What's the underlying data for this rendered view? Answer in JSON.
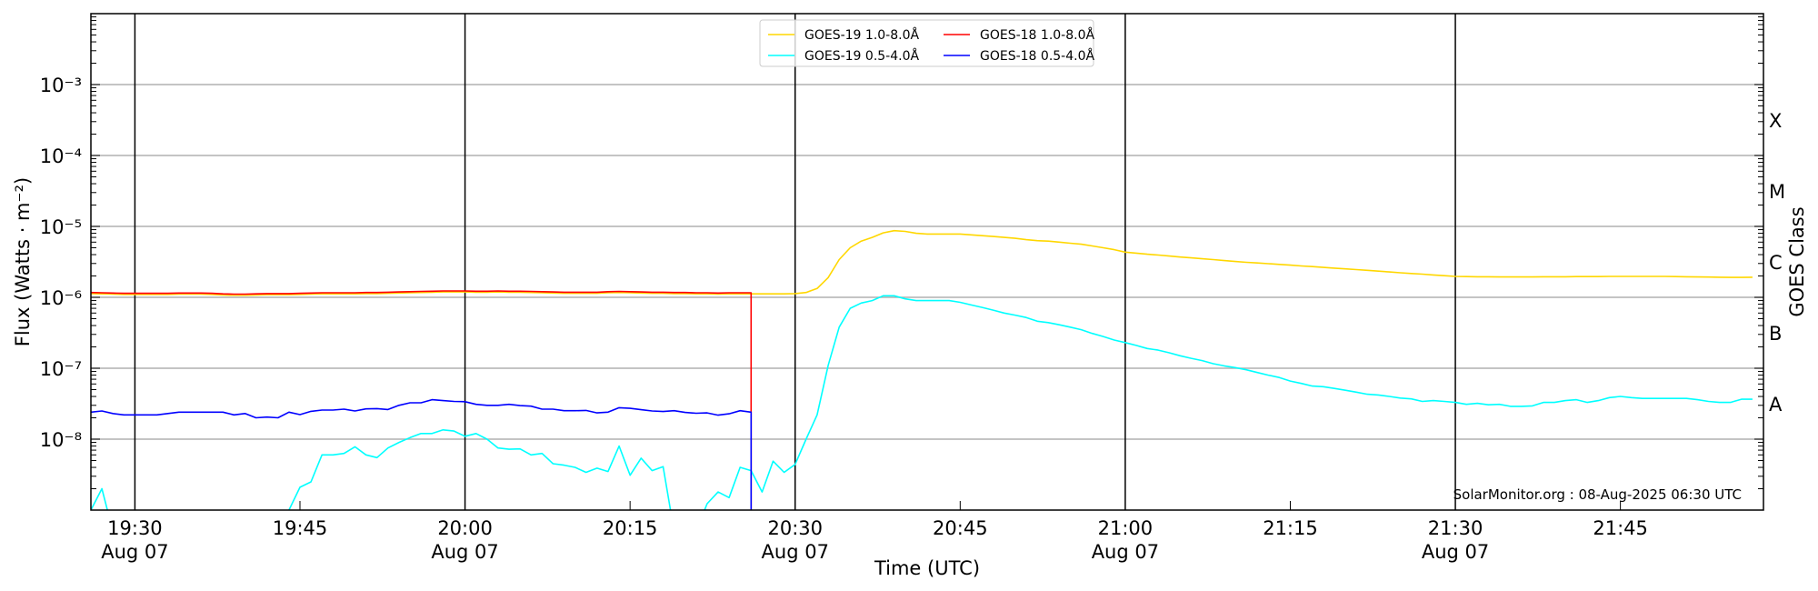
{
  "chart_data": {
    "type": "line",
    "title": "",
    "xlabel": "Time (UTC)",
    "ylabel": "Flux (Watts · m⁻²)",
    "ylabel_right": "GOES Class",
    "yscale": "log",
    "ylim": [
      1e-09,
      0.01
    ],
    "xlim": [
      "19:26",
      "21:58"
    ],
    "date": "Aug 07",
    "grid": "horizontal at decades",
    "legend_placement": "top-center",
    "yticks": [
      1e-08,
      1e-07,
      1e-06,
      1e-05,
      0.0001,
      0.001
    ],
    "ytick_labels": [
      "10⁻⁸",
      "10⁻⁷",
      "10⁻⁶",
      "10⁻⁵",
      "10⁻⁴",
      "10⁻³"
    ],
    "xticks": [
      {
        "time": "19:30",
        "label": "19:30",
        "sublabel": "Aug 07",
        "vline": true
      },
      {
        "time": "19:45",
        "label": "19:45"
      },
      {
        "time": "20:00",
        "label": "20:00",
        "sublabel": "Aug 07",
        "vline": true
      },
      {
        "time": "20:15",
        "label": "20:15"
      },
      {
        "time": "20:30",
        "label": "20:30",
        "sublabel": "Aug 07",
        "vline": true
      },
      {
        "time": "20:45",
        "label": "20:45"
      },
      {
        "time": "21:00",
        "label": "21:00",
        "sublabel": "Aug 07",
        "vline": true
      },
      {
        "time": "21:15",
        "label": "21:15"
      },
      {
        "time": "21:30",
        "label": "21:30",
        "sublabel": "Aug 07",
        "vline": true
      },
      {
        "time": "21:45",
        "label": "21:45"
      }
    ],
    "goes_classes": [
      {
        "label": "X",
        "log_flux": -3.5
      },
      {
        "label": "M",
        "log_flux": -4.5
      },
      {
        "label": "C",
        "log_flux": -5.5
      },
      {
        "label": "B",
        "log_flux": -6.5
      },
      {
        "label": "A",
        "log_flux": -7.5
      }
    ],
    "series": [
      {
        "name": "GOES-19 1.0-8.0Å",
        "color": "#FFD700",
        "start": "19:26",
        "step_min": 1,
        "values": [
          1.13e-06,
          1.12e-06,
          1.11e-06,
          1.1e-06,
          1.1e-06,
          1.1e-06,
          1.1e-06,
          1.1e-06,
          1.11e-06,
          1.11e-06,
          1.11e-06,
          1.1e-06,
          1.08e-06,
          1.07e-06,
          1.07e-06,
          1.08e-06,
          1.09e-06,
          1.09e-06,
          1.09e-06,
          1.1e-06,
          1.11e-06,
          1.12e-06,
          1.12e-06,
          1.12e-06,
          1.12e-06,
          1.13e-06,
          1.13e-06,
          1.14e-06,
          1.15e-06,
          1.16e-06,
          1.17e-06,
          1.18e-06,
          1.19e-06,
          1.19e-06,
          1.19e-06,
          1.18e-06,
          1.18e-06,
          1.19e-06,
          1.18e-06,
          1.18e-06,
          1.17e-06,
          1.16e-06,
          1.15e-06,
          1.14e-06,
          1.14e-06,
          1.14e-06,
          1.14e-06,
          1.16e-06,
          1.17e-06,
          1.16e-06,
          1.15e-06,
          1.14e-06,
          1.14e-06,
          1.13e-06,
          1.13e-06,
          1.12e-06,
          1.12e-06,
          1.11e-06,
          1.12e-06,
          1.12e-06,
          1.12e-06,
          1.12e-06,
          1.12e-06,
          1.12e-06,
          1.13e-06,
          1.17e-06,
          1.33e-06,
          1.9e-06,
          3.4e-06,
          5e-06,
          6.2e-06,
          7e-06,
          8.1e-06,
          8.7e-06,
          8.5e-06,
          8e-06,
          7.8e-06,
          7.8e-06,
          7.8e-06,
          7.8e-06,
          7.6e-06,
          7.4e-06,
          7.2e-06,
          7e-06,
          6.8e-06,
          6.5e-06,
          6.3e-06,
          6.2e-06,
          6e-06,
          5.8e-06,
          5.6e-06,
          5.3e-06,
          5e-06,
          4.7e-06,
          4.34e-06,
          4.2e-06,
          4.05e-06,
          3.95e-06,
          3.82e-06,
          3.7e-06,
          3.6e-06,
          3.5e-06,
          3.4e-06,
          3.3e-06,
          3.2e-06,
          3.12e-06,
          3.05e-06,
          2.98e-06,
          2.91e-06,
          2.84e-06,
          2.77e-06,
          2.71e-06,
          2.64e-06,
          2.58e-06,
          2.52e-06,
          2.46e-06,
          2.4e-06,
          2.34e-06,
          2.28e-06,
          2.22e-06,
          2.17e-06,
          2.12e-06,
          2.07e-06,
          2.02e-06,
          1.97e-06,
          1.96e-06,
          1.95e-06,
          1.95e-06,
          1.94e-06,
          1.94e-06,
          1.94e-06,
          1.94e-06,
          1.95e-06,
          1.95e-06,
          1.95e-06,
          1.96e-06,
          1.96e-06,
          1.96e-06,
          1.97e-06,
          1.97e-06,
          1.97e-06,
          1.97e-06,
          1.97e-06,
          1.97e-06,
          1.96e-06,
          1.95e-06,
          1.94e-06,
          1.93e-06,
          1.92e-06,
          1.91e-06,
          1.91e-06,
          1.92e-06
        ]
      },
      {
        "name": "GOES-18 1.0-8.0Å",
        "color": "#FF0000",
        "start": "19:26",
        "step_min": 1,
        "ends_with_dropout": true,
        "values": [
          1.17e-06,
          1.16e-06,
          1.15e-06,
          1.14e-06,
          1.14e-06,
          1.14e-06,
          1.14e-06,
          1.14e-06,
          1.15e-06,
          1.15e-06,
          1.15e-06,
          1.14e-06,
          1.12e-06,
          1.11e-06,
          1.11e-06,
          1.12e-06,
          1.13e-06,
          1.13e-06,
          1.13e-06,
          1.14e-06,
          1.15e-06,
          1.16e-06,
          1.16e-06,
          1.16e-06,
          1.16e-06,
          1.17e-06,
          1.17e-06,
          1.18e-06,
          1.19e-06,
          1.2e-06,
          1.21e-06,
          1.22e-06,
          1.23e-06,
          1.23e-06,
          1.23e-06,
          1.22e-06,
          1.22e-06,
          1.23e-06,
          1.22e-06,
          1.22e-06,
          1.21e-06,
          1.2e-06,
          1.19e-06,
          1.18e-06,
          1.18e-06,
          1.18e-06,
          1.18e-06,
          1.2e-06,
          1.21e-06,
          1.2e-06,
          1.19e-06,
          1.18e-06,
          1.18e-06,
          1.17e-06,
          1.17e-06,
          1.16e-06,
          1.16e-06,
          1.15e-06,
          1.16e-06,
          1.16e-06,
          1.16e-06
        ]
      },
      {
        "name": "GOES-19 0.5-4.0Å",
        "color": "#00FFFF",
        "start": "19:26",
        "step_min": 1,
        "values": [
          1e-09,
          2e-09,
          5e-10,
          5e-10,
          5e-10,
          5e-10,
          5e-10,
          5e-10,
          5e-10,
          5e-10,
          5e-10,
          5e-10,
          5e-10,
          5e-10,
          5e-10,
          5e-10,
          5e-10,
          5e-10,
          1e-09,
          2.1e-09,
          2.5e-09,
          6e-09,
          6e-09,
          6.3e-09,
          7.8e-09,
          6e-09,
          5.5e-09,
          7.5e-09,
          9e-09,
          1.05e-08,
          1.2e-08,
          1.2e-08,
          1.35e-08,
          1.3e-08,
          1.1e-08,
          1.2e-08,
          1e-08,
          7.5e-09,
          7.2e-09,
          7.3e-09,
          6e-09,
          6.3e-09,
          4.5e-09,
          4.3e-09,
          4e-09,
          3.4e-09,
          3.9e-09,
          3.5e-09,
          8e-09,
          3.1e-09,
          5.4e-09,
          3.6e-09,
          4.1e-09,
          5e-10,
          5e-10,
          5e-10,
          1.23e-09,
          1.8e-09,
          1.5e-09,
          4e-09,
          3.6e-09,
          1.8e-09,
          4.9e-09,
          3.4e-09,
          4.4e-09,
          1e-08,
          2.2e-08,
          1.1e-07,
          3.8e-07,
          7e-07,
          8.3e-07,
          9e-07,
          1.05e-06,
          1.05e-06,
          9.5e-07,
          9e-07,
          9e-07,
          9e-07,
          9e-07,
          8.5e-07,
          7.8e-07,
          7.2e-07,
          6.6e-07,
          6e-07,
          5.6e-07,
          5.2e-07,
          4.6e-07,
          4.4e-07,
          4.1e-07,
          3.8e-07,
          3.5e-07,
          3.1e-07,
          2.8e-07,
          2.5e-07,
          2.3e-07,
          2.1e-07,
          1.9e-07,
          1.8e-07,
          1.65e-07,
          1.5e-07,
          1.38e-07,
          1.28e-07,
          1.16e-07,
          1.08e-07,
          1.02e-07,
          9.5e-08,
          8.7e-08,
          8e-08,
          7.4e-08,
          6.6e-08,
          6.1e-08,
          5.6e-08,
          5.5e-08,
          5.2e-08,
          4.9e-08,
          4.6e-08,
          4.3e-08,
          4.2e-08,
          4e-08,
          3.8e-08,
          3.7e-08,
          3.4e-08,
          3.5e-08,
          3.4e-08,
          3.3e-08,
          3.1e-08,
          3.2e-08,
          3.05e-08,
          3.1e-08,
          2.9e-08,
          2.9e-08,
          2.95e-08,
          3.3e-08,
          3.3e-08,
          3.5e-08,
          3.6e-08,
          3.3e-08,
          3.5e-08,
          3.85e-08,
          4e-08,
          3.85e-08,
          3.75e-08,
          3.75e-08,
          3.75e-08,
          3.75e-08,
          3.75e-08,
          3.6e-08,
          3.4e-08,
          3.3e-08,
          3.3e-08,
          3.65e-08,
          3.65e-08
        ]
      },
      {
        "name": "GOES-18 0.5-4.0Å",
        "color": "#0000FF",
        "start": "19:26",
        "step_min": 1,
        "ends_with_dropout": true,
        "values": [
          2.4e-08,
          2.5e-08,
          2.3e-08,
          2.2e-08,
          2.2e-08,
          2.2e-08,
          2.2e-08,
          2.3e-08,
          2.4e-08,
          2.4e-08,
          2.4e-08,
          2.4e-08,
          2.4e-08,
          2.2e-08,
          2.3e-08,
          2e-08,
          2.05e-08,
          2e-08,
          2.4e-08,
          2.22e-08,
          2.47e-08,
          2.57e-08,
          2.57e-08,
          2.65e-08,
          2.5e-08,
          2.67e-08,
          2.7e-08,
          2.62e-08,
          3e-08,
          3.26e-08,
          3.26e-08,
          3.6e-08,
          3.5e-08,
          3.4e-08,
          3.37e-08,
          3.1e-08,
          3e-08,
          3e-08,
          3.1e-08,
          2.97e-08,
          2.92e-08,
          2.65e-08,
          2.65e-08,
          2.52e-08,
          2.52e-08,
          2.54e-08,
          2.35e-08,
          2.4e-08,
          2.78e-08,
          2.72e-08,
          2.6e-08,
          2.5e-08,
          2.45e-08,
          2.52e-08,
          2.38e-08,
          2.32e-08,
          2.35e-08,
          2.18e-08,
          2.28e-08,
          2.52e-08,
          2.4e-08
        ]
      }
    ],
    "legend_order": [
      0,
      2,
      1,
      3
    ],
    "annotation": "SolarMonitor.org : 08-Aug-2025 06:30 UTC"
  }
}
